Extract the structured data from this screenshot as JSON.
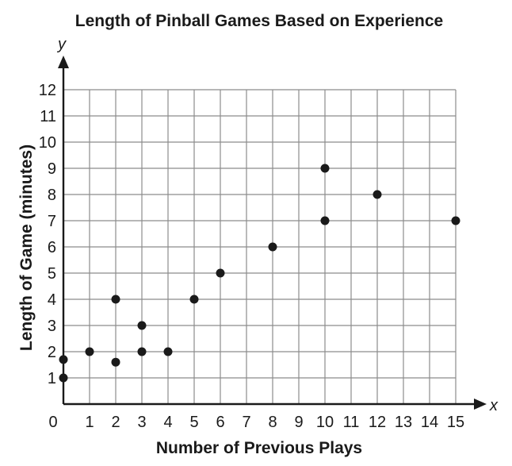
{
  "chart_data": {
    "type": "scatter",
    "title": "Length of Pinball Games Based on Experience",
    "xlabel": "Number of Previous Plays",
    "ylabel": "Length of Game (minutes)",
    "x_var": "x",
    "y_var": "y",
    "xlim": [
      0,
      15
    ],
    "ylim": [
      0,
      12
    ],
    "x_ticks": [
      "0",
      "1",
      "2",
      "3",
      "4",
      "5",
      "6",
      "7",
      "8",
      "9",
      "10",
      "11",
      "12",
      "13",
      "14",
      "15"
    ],
    "y_ticks": [
      "1",
      "2",
      "3",
      "4",
      "5",
      "6",
      "7",
      "8",
      "9",
      "10",
      "11",
      "12"
    ],
    "grid": true,
    "point_color": "#1a1a1a",
    "points": [
      {
        "x": 0,
        "y": 1
      },
      {
        "x": 0,
        "y": 1.7
      },
      {
        "x": 1,
        "y": 2
      },
      {
        "x": 2,
        "y": 1.6
      },
      {
        "x": 2,
        "y": 4
      },
      {
        "x": 3,
        "y": 2
      },
      {
        "x": 3,
        "y": 3
      },
      {
        "x": 4,
        "y": 2
      },
      {
        "x": 5,
        "y": 4
      },
      {
        "x": 6,
        "y": 5
      },
      {
        "x": 8,
        "y": 6
      },
      {
        "x": 10,
        "y": 7
      },
      {
        "x": 10,
        "y": 9
      },
      {
        "x": 12,
        "y": 8
      },
      {
        "x": 15,
        "y": 7
      }
    ]
  }
}
